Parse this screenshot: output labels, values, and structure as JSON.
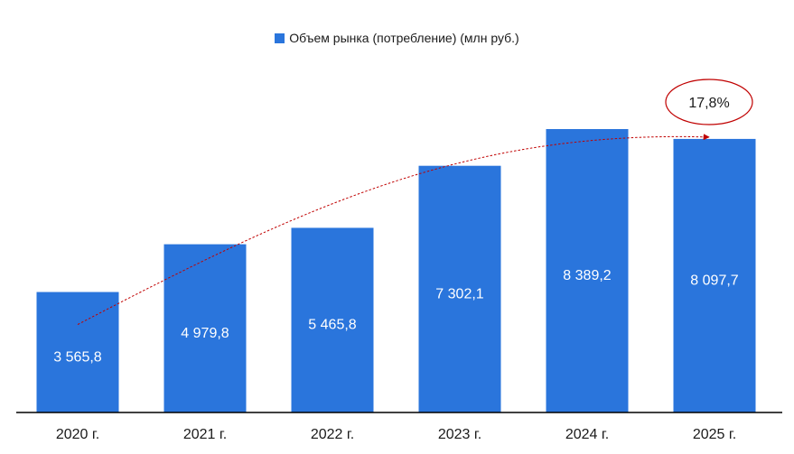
{
  "chart_data": {
    "type": "bar",
    "title": "",
    "xlabel": "",
    "ylabel": "",
    "categories": [
      "2020 г.",
      "2021 г.",
      "2022 г.",
      "2023 г.",
      "2024 г.",
      "2025 г."
    ],
    "series": [
      {
        "name": "Объем рынка (потребление) (млн руб.)",
        "values": [
          3565.8,
          4979.8,
          5465.8,
          7302.1,
          8389.2,
          8097.7
        ],
        "labels": [
          "3 565,8",
          "4 979,8",
          "5 465,8",
          "7 302,1",
          "8 389,2",
          "8 097,7"
        ],
        "color": "#2a75dc"
      }
    ],
    "ylim": [
      0,
      8389.2
    ],
    "grid": false,
    "legend_position": "top-center",
    "annotation": {
      "text": "17,8%",
      "color": "#c00000",
      "from_category": "2020 г.",
      "to_category": "2025 г."
    }
  }
}
